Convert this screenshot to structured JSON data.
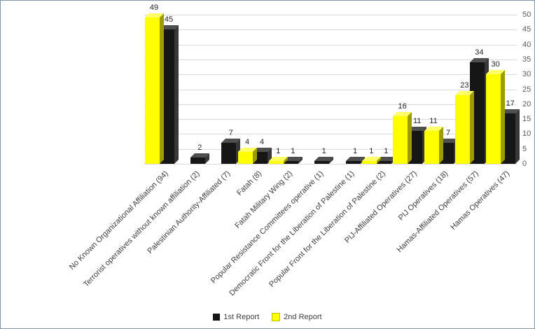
{
  "frame": {
    "background": "#ffffff",
    "border_color": "#7e95aa"
  },
  "chart_data": {
    "type": "bar",
    "variant": "3d-clustered-column",
    "title": "",
    "xlabel": "",
    "ylabel": "",
    "categories": [
      "No Known Organizational Affiliation (94)",
      "Terrorist operatives without known affiliation (2)",
      "Palestinian Authority-Affiliated (7)",
      "Fatah (8)",
      "Fatah Military Wing (2)",
      "Popular Resistance Committees operative (1)",
      "Democratic Front for the Liberation of Palestine (1)",
      "Popular Front for the Liberation of Palestine (2)",
      "PIJ-Affiliated Operatives (27)",
      "PIJ Operatives (18)",
      "Hamas-Affiliated Operatives (57)",
      "Hamas Operatives (47)"
    ],
    "series": [
      {
        "name": "1st Report",
        "color": "#161616",
        "color_top": "#4f4f4f",
        "color_side": "#383838",
        "values": [
          45,
          2,
          7,
          4,
          1,
          1,
          1,
          1,
          11,
          7,
          34,
          17
        ]
      },
      {
        "name": "2nd Report",
        "color": "#ffff00",
        "color_top": "#ffff66",
        "color_side": "#9c9c00",
        "values": [
          49,
          0,
          0,
          4,
          1,
          0,
          0,
          1,
          16,
          11,
          23,
          30
        ]
      }
    ],
    "group_slot_order": [
      1,
      0
    ],
    "ylim": [
      0,
      50
    ],
    "ytick_step": 5,
    "yticks": [
      0,
      5,
      10,
      15,
      20,
      25,
      30,
      35,
      40,
      45,
      50
    ],
    "axis_side": "right",
    "grid": true,
    "gridline_color": "#d9d9d9",
    "value_labels": true,
    "legend_position": "bottom",
    "category_label_rotation_deg": 45
  }
}
